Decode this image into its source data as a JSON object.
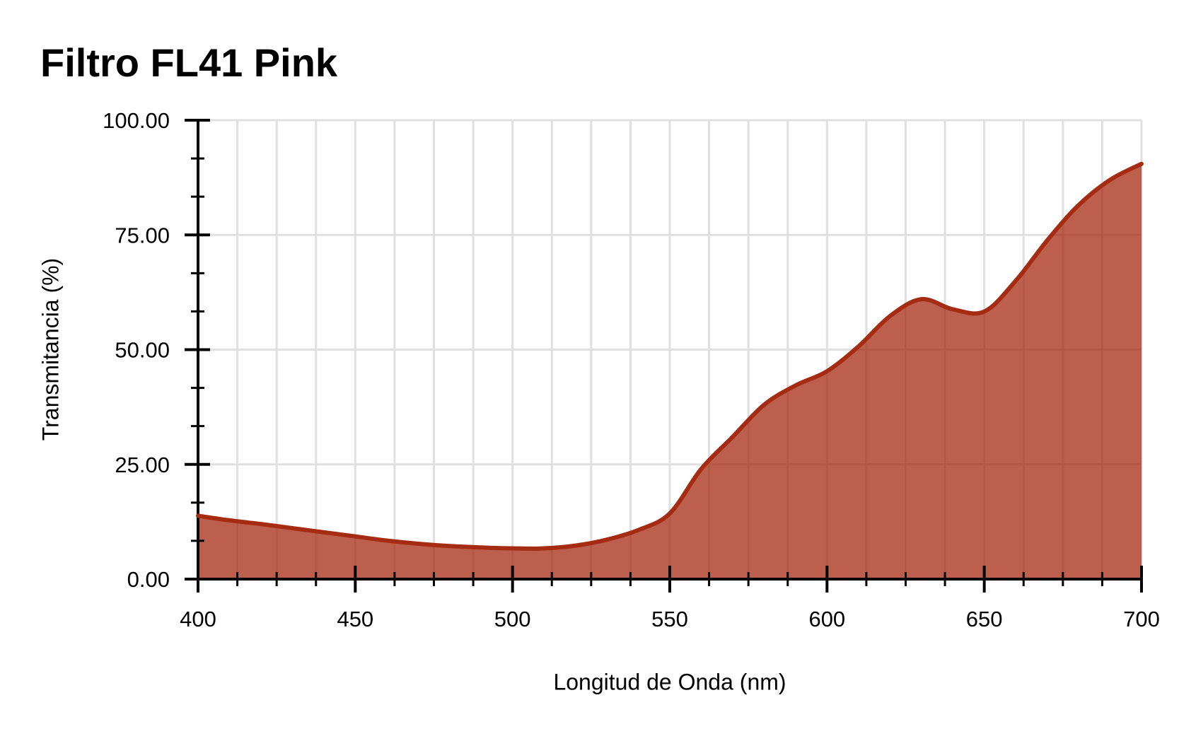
{
  "title": "Filtro FL41 Pink",
  "chart_data": {
    "type": "area",
    "title": "Filtro FL41 Pink",
    "xlabel": "Longitud de Onda (nm)",
    "ylabel": "Transmitancia (%)",
    "xlim": [
      400,
      700
    ],
    "ylim": [
      0,
      100
    ],
    "x_major_ticks": [
      400,
      450,
      500,
      550,
      600,
      650,
      700
    ],
    "x_tick_labels": [
      "400",
      "450",
      "500",
      "550",
      "600",
      "650",
      "700"
    ],
    "x_minor_step": 12.5,
    "y_major_ticks": [
      0,
      25,
      50,
      75,
      100
    ],
    "y_tick_labels": [
      "0.00",
      "25.00",
      "50.00",
      "75.00",
      "100.00"
    ],
    "y_minor_divisions": 3,
    "grid": {
      "vertical": "every minor tick (12.5 nm)",
      "horizontal": "major ticks only (25 %)"
    },
    "legend_position": "none",
    "line_smoothing": true,
    "series": [
      {
        "name": "Transmitancia",
        "x": [
          400,
          410,
          420,
          430,
          440,
          450,
          460,
          470,
          480,
          490,
          500,
          510,
          520,
          530,
          540,
          550,
          560,
          570,
          580,
          590,
          600,
          610,
          620,
          630,
          640,
          650,
          660,
          670,
          680,
          690,
          700
        ],
        "values": [
          13.8,
          12.8,
          12.0,
          11.1,
          10.2,
          9.3,
          8.4,
          7.7,
          7.2,
          6.9,
          6.7,
          6.7,
          7.3,
          8.6,
          10.7,
          14.3,
          24.0,
          31.0,
          38.0,
          42.2,
          45.3,
          50.7,
          57.3,
          61.0,
          58.8,
          58.3,
          65.0,
          73.8,
          81.5,
          87.0,
          90.5
        ]
      }
    ],
    "colors": {
      "line": "#A52B12",
      "fill": "rgba(165,43,18,0.75)",
      "grid": "#E0E0E0",
      "axis": "#000000",
      "text": "#000000",
      "background": "#FFFFFF"
    }
  }
}
